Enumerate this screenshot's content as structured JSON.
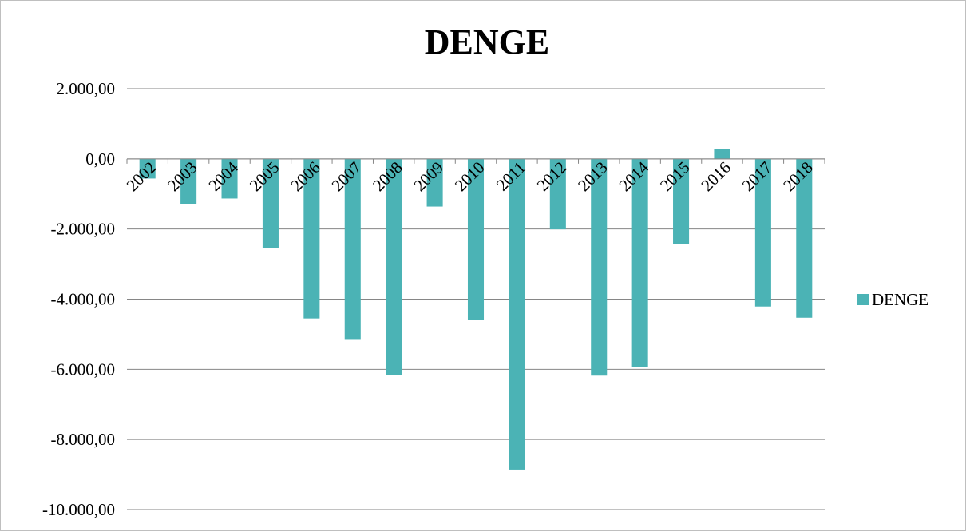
{
  "chart_data": {
    "type": "bar",
    "title": "DENGE",
    "xlabel": "",
    "ylabel": "",
    "categories": [
      "2002",
      "2003",
      "2004",
      "2005",
      "2006",
      "2007",
      "2008",
      "2009",
      "2010",
      "2011",
      "2012",
      "2013",
      "2014",
      "2015",
      "2016",
      "2017",
      "2018"
    ],
    "series": [
      {
        "name": "DENGE",
        "color": "#4bb3b5",
        "values": [
          -560,
          -1300,
          -1130,
          -2540,
          -4550,
          -5160,
          -6160,
          -1360,
          -4590,
          -8860,
          -2010,
          -6180,
          -5930,
          -2420,
          280,
          -4210,
          -4530
        ]
      }
    ],
    "ylim": [
      -10000,
      2000
    ],
    "ytick_values": [
      2000,
      0,
      -2000,
      -4000,
      -6000,
      -8000,
      -10000
    ],
    "ytick_labels": [
      "2.000,00",
      "0,00",
      "-2.000,00",
      "-4.000,00",
      "-6.000,00",
      "-8.000,00",
      "-10.000,00"
    ],
    "grid": true,
    "gridline_color": "#868686",
    "legend": {
      "position": "right",
      "entries": [
        "DENGE"
      ]
    }
  }
}
